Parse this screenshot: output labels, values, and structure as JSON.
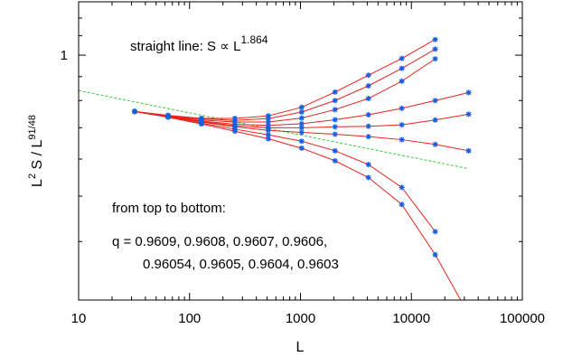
{
  "chart_data": {
    "type": "line",
    "xlabel": "L",
    "ylabel": {
      "base": "L",
      "sup1": "2",
      "mid": " S / L",
      "sup2": "91/48"
    },
    "x_scale": "log",
    "y_scale": "log",
    "xlim": [
      10,
      100000
    ],
    "ylim": [
      0.3,
      1.3
    ],
    "x_ticks": [
      10,
      100,
      1000,
      10000,
      100000
    ],
    "x_tick_labels": [
      "10",
      "100",
      "1000",
      "10000",
      "100000"
    ],
    "y_ticks": [
      1
    ],
    "y_tick_labels": [
      "1"
    ],
    "grid": false,
    "reference_line": {
      "style": "dashed",
      "color": "#33cc33",
      "exponent_label": "1.864",
      "points": [
        [
          10,
          0.84
        ],
        [
          32000,
          0.573
        ]
      ]
    },
    "series_color": "#e8231a",
    "marker_color": "#1a5fe0",
    "series": [
      {
        "q": "0.9609",
        "x": [
          32,
          64,
          128,
          256,
          512,
          1024,
          2048,
          4096,
          8192,
          16384
        ],
        "y": [
          0.758,
          0.744,
          0.733,
          0.733,
          0.742,
          0.774,
          0.834,
          0.906,
          0.984,
          1.08
        ]
      },
      {
        "q": "0.9608",
        "x": [
          32,
          64,
          128,
          256,
          512,
          1024,
          2048,
          4096,
          8192,
          16384
        ],
        "y": [
          0.758,
          0.743,
          0.731,
          0.726,
          0.732,
          0.756,
          0.8,
          0.86,
          0.937,
          1.03
        ]
      },
      {
        "q": "0.9607",
        "x": [
          32,
          64,
          128,
          256,
          512,
          1024,
          2048,
          4096,
          8192,
          16384
        ],
        "y": [
          0.758,
          0.742,
          0.727,
          0.72,
          0.72,
          0.734,
          0.765,
          0.808,
          0.88,
          0.982
        ]
      },
      {
        "q": "0.9606",
        "x": [
          32,
          64,
          128,
          256,
          512,
          1024,
          2048,
          4096,
          8192,
          16384,
          32768
        ],
        "y": [
          0.758,
          0.741,
          0.723,
          0.712,
          0.708,
          0.714,
          0.728,
          0.746,
          0.77,
          0.8,
          0.832
        ]
      },
      {
        "q": "0.96054",
        "x": [
          32,
          64,
          128,
          256,
          512,
          1024,
          2048,
          4096,
          8192,
          16384,
          32768
        ],
        "y": [
          0.758,
          0.74,
          0.721,
          0.707,
          0.7,
          0.7,
          0.703,
          0.705,
          0.71,
          0.727,
          0.748
        ]
      },
      {
        "q": "0.9605",
        "x": [
          32,
          64,
          128,
          256,
          512,
          1024,
          2048,
          4096,
          8192,
          16384,
          32768
        ],
        "y": [
          0.758,
          0.739,
          0.72,
          0.703,
          0.691,
          0.684,
          0.678,
          0.67,
          0.66,
          0.645,
          0.625
        ]
      },
      {
        "q": "0.9604",
        "x": [
          32,
          64,
          128,
          256,
          512,
          1024,
          2048,
          4096,
          8192,
          16384
        ],
        "y": [
          0.758,
          0.738,
          0.716,
          0.695,
          0.676,
          0.655,
          0.625,
          0.584,
          0.522,
          0.42
        ]
      },
      {
        "q": "0.9603",
        "x": [
          32,
          64,
          128,
          256,
          512,
          1024,
          2048,
          4096,
          8192,
          16384,
          32768
        ],
        "y": [
          0.758,
          0.737,
          0.713,
          0.688,
          0.663,
          0.633,
          0.595,
          0.548,
          0.48,
          0.375,
          0.28
        ]
      }
    ]
  },
  "annotations": {
    "straight_line": {
      "prefix": "straight line:  S ",
      "propto": "∝",
      "base": " L",
      "exponent": "1.864"
    },
    "order_note": "from top to bottom:",
    "q_line1": "q = 0.9609, 0.9608, 0.9607, 0.9606,",
    "q_line2": "0.96054, 0.9605, 0.9604, 0.9603"
  }
}
